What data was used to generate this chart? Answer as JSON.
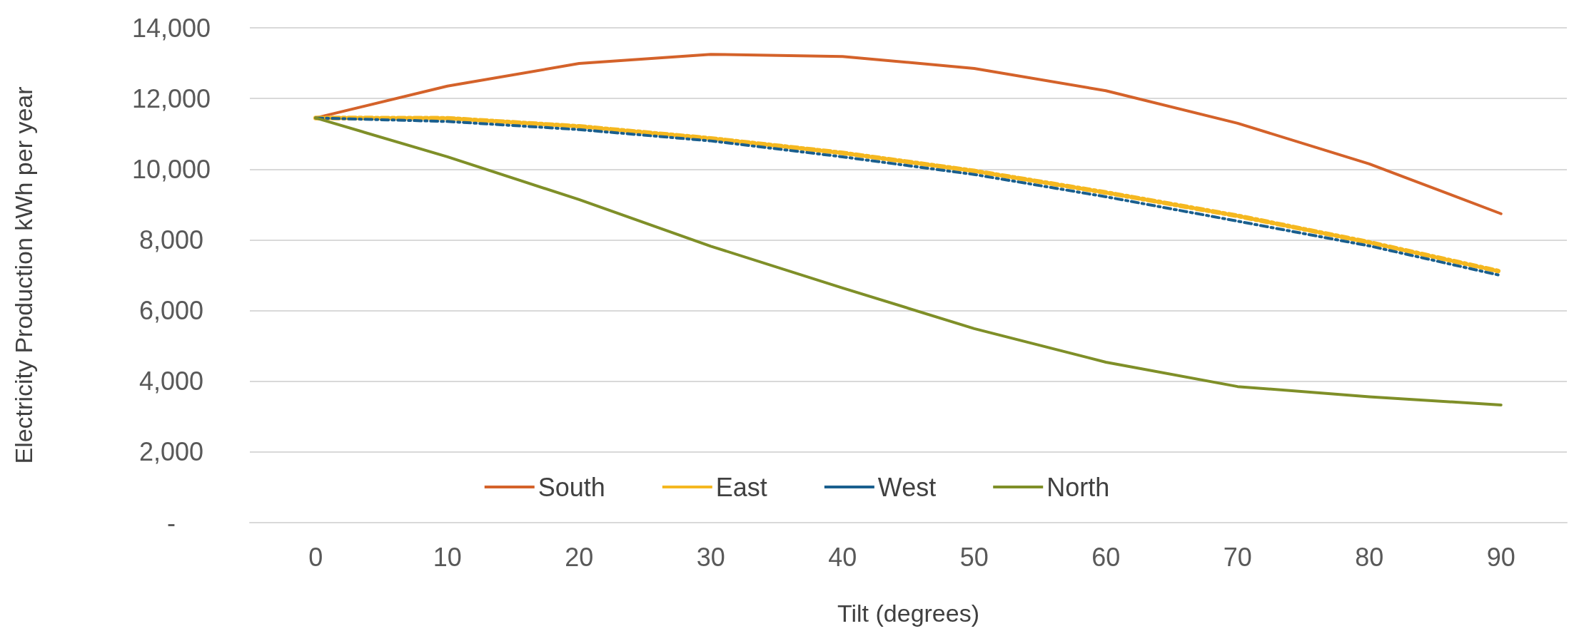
{
  "chart_data": {
    "type": "line",
    "xlabel": "Tilt (degrees)",
    "ylabel": "Electricity Production kWh per year",
    "categories": [
      "0",
      "10",
      "20",
      "30",
      "40",
      "50",
      "60",
      "70",
      "80",
      "90"
    ],
    "series": [
      {
        "name": "South",
        "color": "#d4622a",
        "line_style": "solid",
        "values": [
          11450,
          12350,
          12990,
          13250,
          13190,
          12850,
          12220,
          11300,
          10150,
          8740
        ]
      },
      {
        "name": "East",
        "color": "#f5b820",
        "line_style": "dashed",
        "values": [
          11450,
          11440,
          11210,
          10870,
          10460,
          9950,
          9340,
          8680,
          7930,
          7100
        ]
      },
      {
        "name": "West",
        "color": "#1a5f8e",
        "line_style": "dashed",
        "values": [
          11450,
          11350,
          11120,
          10800,
          10350,
          9850,
          9220,
          8530,
          7830,
          6990
        ]
      },
      {
        "name": "North",
        "color": "#7f8f28",
        "line_style": "solid",
        "values": [
          11450,
          10350,
          9140,
          7820,
          6640,
          5490,
          4540,
          3850,
          3560,
          3330
        ]
      }
    ],
    "ylim": [
      0,
      14000
    ],
    "yticks": [
      {
        "value": 0,
        "label": "-"
      },
      {
        "value": 2000,
        "label": "2,000"
      },
      {
        "value": 4000,
        "label": "4,000"
      },
      {
        "value": 6000,
        "label": "6,000"
      },
      {
        "value": 8000,
        "label": "8,000"
      },
      {
        "value": 10000,
        "label": "10,000"
      },
      {
        "value": 12000,
        "label": "12,000"
      },
      {
        "value": 14000,
        "label": "14,000"
      }
    ],
    "grid": "y",
    "legend": "bottom",
    "marker": "none"
  }
}
